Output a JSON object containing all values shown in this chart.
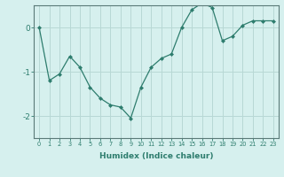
{
  "x": [
    0,
    1,
    2,
    3,
    4,
    5,
    6,
    7,
    8,
    9,
    10,
    11,
    12,
    13,
    14,
    15,
    16,
    17,
    18,
    19,
    20,
    21,
    22,
    23
  ],
  "y": [
    0.0,
    -1.2,
    -1.05,
    -0.65,
    -0.9,
    -1.35,
    -1.6,
    -1.75,
    -1.8,
    -2.05,
    -1.35,
    -0.9,
    -0.7,
    -0.6,
    0.0,
    0.4,
    0.55,
    0.45,
    -0.3,
    -0.2,
    0.05,
    0.15,
    0.15,
    0.15
  ],
  "line_color": "#2e7d6e",
  "marker": "D",
  "marker_size": 2,
  "background_color": "#d6f0ee",
  "grid_color": "#b8d8d5",
  "axis_color": "#5a7a78",
  "xlabel": "Humidex (Indice chaleur)",
  "xlim": [
    -0.5,
    23.5
  ],
  "ylim": [
    -2.5,
    0.5
  ],
  "yticks": [
    0,
    -1,
    -2
  ],
  "xticks": [
    0,
    1,
    2,
    3,
    4,
    5,
    6,
    7,
    8,
    9,
    10,
    11,
    12,
    13,
    14,
    15,
    16,
    17,
    18,
    19,
    20,
    21,
    22,
    23
  ],
  "xlabel_fontsize": 6.5,
  "xtick_fontsize": 4.8,
  "ytick_fontsize": 6.5
}
